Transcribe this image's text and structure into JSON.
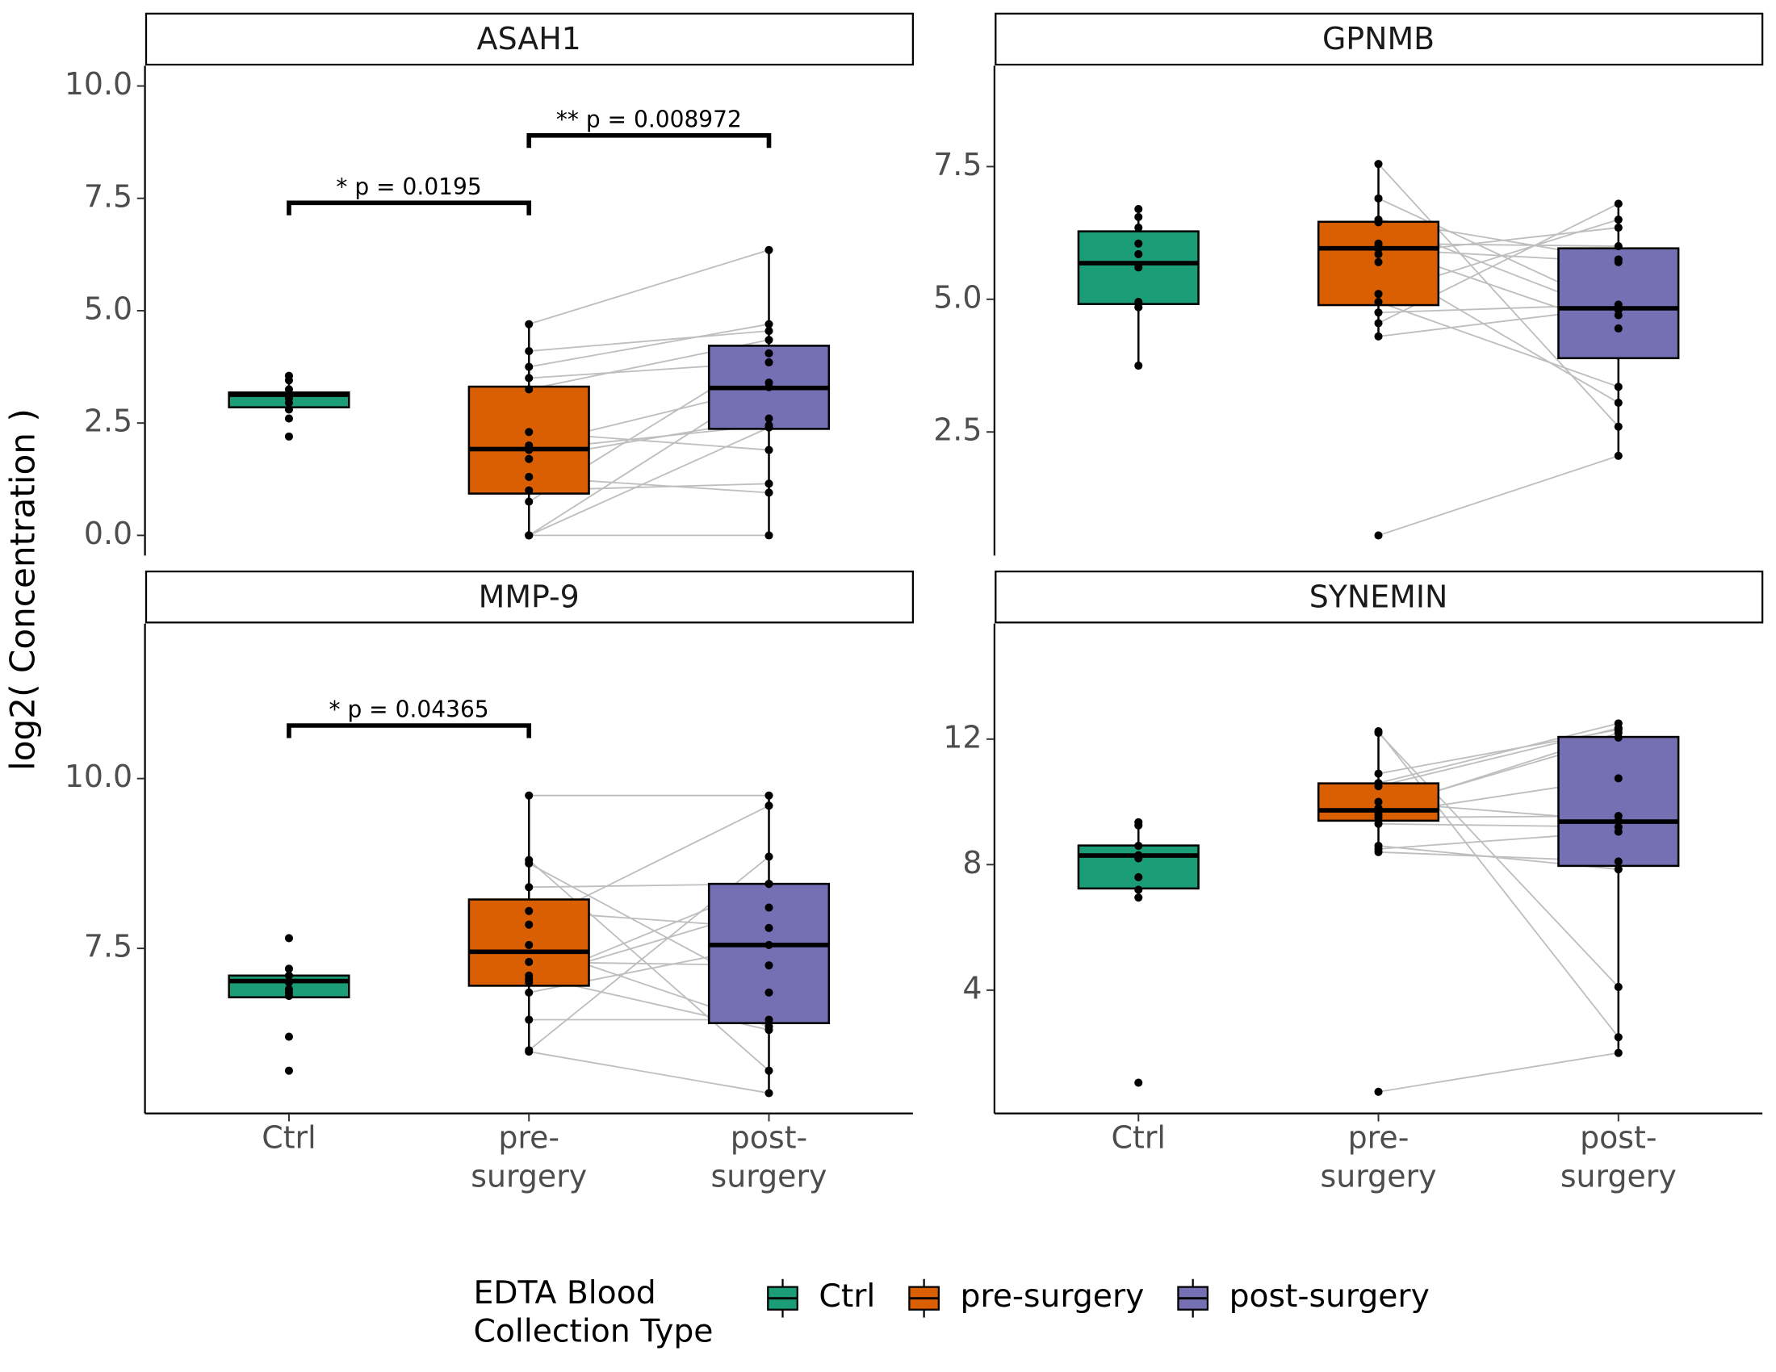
{
  "y_label": "log2( Concentration )",
  "categories": [
    [
      "Ctrl"
    ],
    [
      "pre-",
      "surgery"
    ],
    [
      "post-",
      "surgery"
    ]
  ],
  "legend": {
    "title": [
      "EDTA Blood",
      "Collection Type"
    ],
    "position": "bottom",
    "entries": [
      {
        "name": "Ctrl",
        "color": "#1b9e77"
      },
      {
        "name": "pre-surgery",
        "color": "#d95f02"
      },
      {
        "name": "post-surgery",
        "color": "#7570b3"
      }
    ]
  },
  "chart_data": [
    {
      "type": "box",
      "title": "ASAH1",
      "ylim": [
        -0.45,
        10.45
      ],
      "yticks": [
        {
          "value": 0,
          "label": "0.0"
        },
        2.5,
        {
          "value": 5,
          "label": "5.0"
        },
        7.5,
        {
          "value": 10,
          "label": "10.0"
        }
      ],
      "paired": true,
      "groups": [
        {
          "values": [
            3.55,
            3.45,
            3.25,
            3.15,
            3.1,
            3.05,
            2.95,
            2.8,
            2.6,
            2.2
          ],
          "box": {
            "lower": 2.8,
            "q1": 2.85,
            "median": 3.13,
            "q3": 3.18,
            "upper": 3.45
          }
        },
        {
          "values": [
            4.7,
            4.1,
            3.75,
            3.5,
            3.25,
            2.3,
            2.0,
            1.9,
            1.7,
            1.3,
            1.0,
            0.75,
            0,
            0,
            0
          ],
          "box": {
            "lower": 0,
            "q1": 0.93,
            "median": 1.92,
            "q3": 3.31,
            "upper": 4.7
          }
        },
        {
          "values": [
            6.35,
            4.55,
            4.7,
            3.85,
            4.35,
            1.9,
            3.3,
            2.45,
            2.6,
            0.95,
            1.15,
            4.05,
            2.4,
            3.4,
            0
          ],
          "box": {
            "lower": 0,
            "q1": 2.37,
            "median": 3.28,
            "q3": 4.22,
            "upper": 6.35
          }
        }
      ],
      "annotations": [
        {
          "label": "* p = 0.0195",
          "between": [
            0,
            1
          ],
          "y": 7.4
        },
        {
          "label": "** p = 0.008972",
          "between": [
            1,
            2
          ],
          "y": 8.9
        }
      ]
    },
    {
      "type": "box",
      "title": "GPNMB",
      "ylim": [
        0.17,
        9.4
      ],
      "yticks": [
        2.5,
        {
          "value": 5,
          "label": "5.0"
        },
        7.5
      ],
      "paired": true,
      "groups": [
        {
          "values": [
            6.7,
            6.55,
            6.35,
            6.05,
            5.85,
            5.6,
            4.95,
            4.85,
            3.75
          ],
          "box": {
            "lower": 3.75,
            "q1": 4.91,
            "median": 5.68,
            "q3": 6.28,
            "upper": 6.7
          }
        },
        {
          "values": [
            7.55,
            6.9,
            6.5,
            6.45,
            6.05,
            6.0,
            5.95,
            5.85,
            5.7,
            5.1,
            4.95,
            4.75,
            4.55,
            4.3,
            0.55
          ],
          "box": {
            "lower": 4.3,
            "q1": 4.89,
            "median": 5.96,
            "q3": 6.46,
            "upper": 7.55
          }
        },
        {
          "values": [
            2.6,
            4.8,
            5.75,
            4.7,
            6.0,
            4.45,
            5.7,
            6.35,
            3.05,
            6.5,
            3.35,
            4.9,
            6.8,
            4.85,
            2.05
          ],
          "box": {
            "lower": 2.05,
            "q1": 3.89,
            "median": 4.83,
            "q3": 5.96,
            "upper": 6.8
          }
        }
      ],
      "annotations": []
    },
    {
      "type": "box",
      "title": "MMP-9",
      "ylim": [
        5.07,
        12.28
      ],
      "yticks": [
        7.5,
        {
          "value": 10,
          "label": "10.0"
        }
      ],
      "paired": true,
      "groups": [
        {
          "values": [
            7.65,
            7.2,
            7.1,
            7.0,
            6.9,
            6.85,
            6.8,
            6.2,
            5.7
          ],
          "box": {
            "lower": 6.75,
            "q1": 6.78,
            "median": 7.02,
            "q3": 7.1,
            "upper": 7.2
          }
        },
        {
          "values": [
            9.75,
            8.8,
            8.75,
            8.4,
            8.05,
            7.85,
            7.55,
            7.3,
            7.1,
            7.05,
            7.0,
            6.85,
            6.45,
            6.0,
            5.98
          ],
          "box": {
            "lower": 5.98,
            "q1": 6.95,
            "median": 7.45,
            "q3": 8.22,
            "upper": 9.75
          }
        },
        {
          "values": [
            9.75,
            5.7,
            6.85,
            8.45,
            7.8,
            9.6,
            6.35,
            7.25,
            6.3,
            8.1,
            8.45,
            7.55,
            6.45,
            8.85,
            5.37
          ],
          "box": {
            "lower": 5.37,
            "q1": 6.4,
            "median": 7.55,
            "q3": 8.45,
            "upper": 9.75
          }
        }
      ],
      "annotations": [
        {
          "label": "* p = 0.04365",
          "between": [
            0,
            1
          ],
          "y": 10.78
        }
      ]
    },
    {
      "type": "box",
      "title": "SYNEMIN",
      "ylim": [
        0.07,
        15.68
      ],
      "yticks": [
        4,
        8,
        12
      ],
      "paired": true,
      "groups": [
        {
          "values": [
            9.35,
            9.25,
            8.6,
            8.3,
            8.2,
            7.6,
            7.2,
            6.95,
            1.05
          ],
          "box": {
            "lower": 6.95,
            "q1": 7.24,
            "median": 8.29,
            "q3": 8.61,
            "upper": 9.35
          }
        },
        {
          "values": [
            12.25,
            12.2,
            10.9,
            10.6,
            10.5,
            10.0,
            9.8,
            9.75,
            9.6,
            9.5,
            9.3,
            8.6,
            8.5,
            8.4,
            0.76
          ],
          "box": {
            "lower": 8.4,
            "q1": 9.4,
            "median": 9.73,
            "q3": 10.59,
            "upper": 12.25
          }
        },
        {
          "values": [
            2.5,
            4.1,
            12.3,
            12.5,
            12.35,
            9.4,
            12.05,
            12.2,
            10.75,
            9.55,
            9.2,
            7.85,
            9.05,
            8.1,
            2.0
          ],
          "box": {
            "lower": 2.0,
            "q1": 7.96,
            "median": 9.37,
            "q3": 12.07,
            "upper": 12.5
          }
        }
      ],
      "annotations": []
    }
  ]
}
